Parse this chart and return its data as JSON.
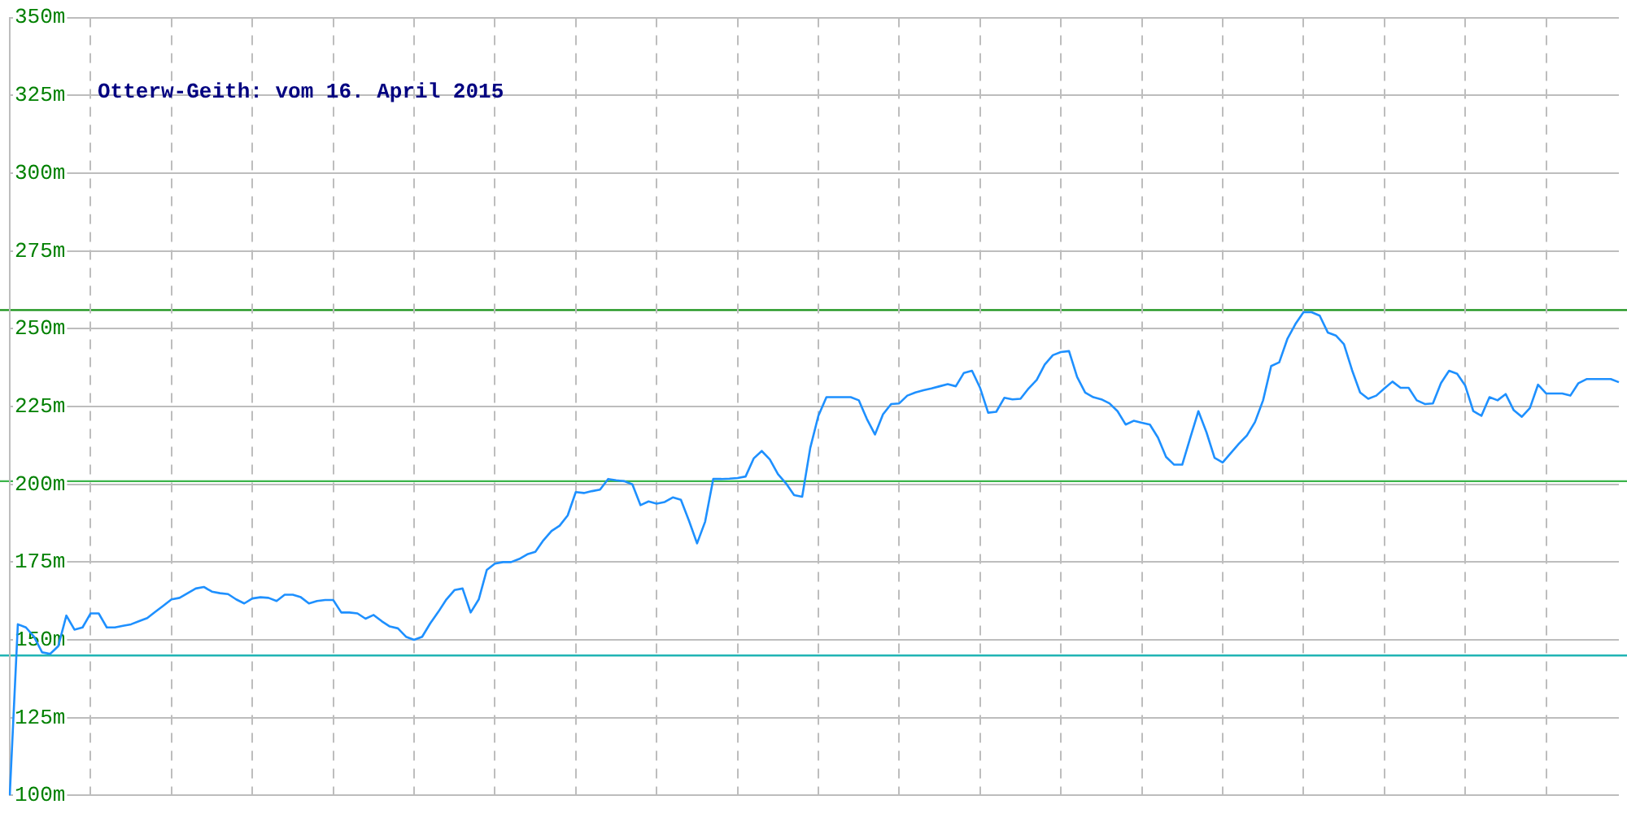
{
  "chart_data": {
    "type": "line",
    "title": "Otterw-Geith: vom 16. April 2015",
    "categories": [
      null,
      null,
      null,
      null,
      null,
      null,
      null,
      null,
      null,
      null,
      null,
      null,
      null,
      null,
      null,
      null,
      null,
      null,
      null,
      null,
      null,
      null,
      null,
      null,
      null,
      null,
      null,
      null,
      null,
      null,
      null,
      null,
      null,
      null,
      null,
      null,
      null,
      null,
      null,
      null,
      null,
      null,
      null,
      null,
      null,
      null,
      null,
      null,
      null,
      null,
      null,
      null,
      null,
      null,
      null,
      null,
      null,
      null,
      null,
      null,
      null,
      null,
      null,
      null,
      null,
      null,
      null,
      null,
      null,
      null,
      null,
      null,
      null,
      null,
      null,
      null,
      null,
      null,
      null,
      null,
      null,
      null,
      null,
      null,
      null,
      null,
      null,
      null,
      null,
      null,
      null,
      null,
      null,
      null,
      null,
      null,
      null,
      null,
      null,
      null,
      null,
      null,
      null,
      null,
      null,
      null,
      null,
      null,
      null,
      null,
      null,
      null,
      null,
      null,
      null,
      null,
      null,
      null,
      null,
      null,
      null,
      null,
      null,
      null,
      null,
      null,
      null,
      null,
      null,
      null,
      null,
      null,
      null,
      null,
      null,
      null,
      null,
      null,
      null,
      null,
      null,
      null,
      null,
      null,
      null,
      null,
      null,
      null,
      null,
      null,
      null,
      null,
      null,
      null,
      null,
      null,
      null,
      null,
      null,
      null,
      null,
      null,
      null,
      null,
      null,
      null,
      null,
      null,
      null,
      null,
      null,
      null,
      null,
      null,
      null,
      null,
      null,
      null,
      null,
      null,
      null,
      null,
      null,
      null,
      null,
      null,
      null,
      null,
      null,
      null,
      null,
      null,
      null,
      null,
      null,
      null,
      null,
      null,
      null,
      null
    ],
    "series": [
      {
        "color": "#1e90ff",
        "values": [
          100,
          155,
          154,
          151,
          146,
          145.5,
          148,
          157.8,
          153.3,
          154,
          158.5,
          158.5,
          154,
          154,
          154.5,
          155,
          156,
          157,
          159,
          161,
          163,
          163.5,
          165,
          166.5,
          167,
          165.5,
          165,
          164.7,
          163,
          161.7,
          163.3,
          163.7,
          163.5,
          162.5,
          164.5,
          164.5,
          163.7,
          161.7,
          162.5,
          162.8,
          162.8,
          158.8,
          158.8,
          158.5,
          156.8,
          158,
          156,
          154.3,
          153.7,
          151,
          150,
          151,
          155.3,
          159,
          163,
          166,
          166.5,
          158.8,
          163,
          172.5,
          174.5,
          175,
          175,
          176,
          177.5,
          178.3,
          182,
          185,
          186.7,
          190,
          197.5,
          197.2,
          197.8,
          198.3,
          201.7,
          201.3,
          201,
          200,
          193.3,
          194.5,
          193.8,
          194.3,
          195.8,
          195,
          188.3,
          181,
          188,
          201.7,
          201.7,
          201.8,
          202,
          202.5,
          208.3,
          210.7,
          208,
          203.3,
          200.3,
          196.5,
          196,
          211.7,
          222,
          228,
          228,
          228,
          228,
          227,
          221,
          216,
          222.5,
          225.8,
          226,
          228.5,
          229.5,
          230.2,
          230.8,
          231.5,
          232.2,
          231.5,
          235.8,
          236.5,
          231,
          223,
          223.3,
          227.8,
          227.3,
          227.5,
          230.8,
          233.5,
          238.5,
          241.5,
          242.5,
          242.8,
          234.5,
          229.5,
          228,
          227.3,
          226,
          223.5,
          219.2,
          220.4,
          219.8,
          219.2,
          215,
          208.8,
          206.3,
          206.3,
          215,
          223.5,
          216.7,
          208.5,
          207,
          210,
          213,
          215.7,
          220,
          227,
          238,
          239.2,
          246.7,
          251.5,
          255.3,
          255.3,
          254.2,
          248.8,
          247.8,
          245,
          236.7,
          229.5,
          227.5,
          228.5,
          230.8,
          233,
          231,
          231,
          227,
          225.8,
          226,
          232.5,
          236.5,
          235.5,
          231.7,
          223.5,
          222,
          228,
          227,
          229,
          223.8,
          221.7,
          224.5,
          232,
          229.2,
          229.2,
          229.2,
          228.5,
          232.5,
          233.8,
          233.8,
          233.8,
          233.8,
          232.8
        ]
      }
    ],
    "ylim": [
      100,
      350
    ],
    "yticks": [
      {
        "value": 100,
        "label": "100m"
      },
      {
        "value": 125,
        "label": "125m"
      },
      {
        "value": 150,
        "label": "150m"
      },
      {
        "value": 175,
        "label": "175m"
      },
      {
        "value": 200,
        "label": "200m"
      },
      {
        "value": 225,
        "label": "225m"
      },
      {
        "value": 250,
        "label": "250m"
      },
      {
        "value": 275,
        "label": "275m"
      },
      {
        "value": 300,
        "label": "300m"
      },
      {
        "value": 325,
        "label": "325m"
      },
      {
        "value": 350,
        "label": "350m"
      }
    ],
    "ref_lines": [
      {
        "axis": "y",
        "value": 256,
        "color": "#159015"
      },
      {
        "axis": "y",
        "value": 201,
        "color": "#3cb44b"
      },
      {
        "axis": "y",
        "value": 145,
        "color": "#20b4b4"
      }
    ],
    "grid": true,
    "legend": false,
    "marker": "none",
    "line_style": "solid"
  }
}
